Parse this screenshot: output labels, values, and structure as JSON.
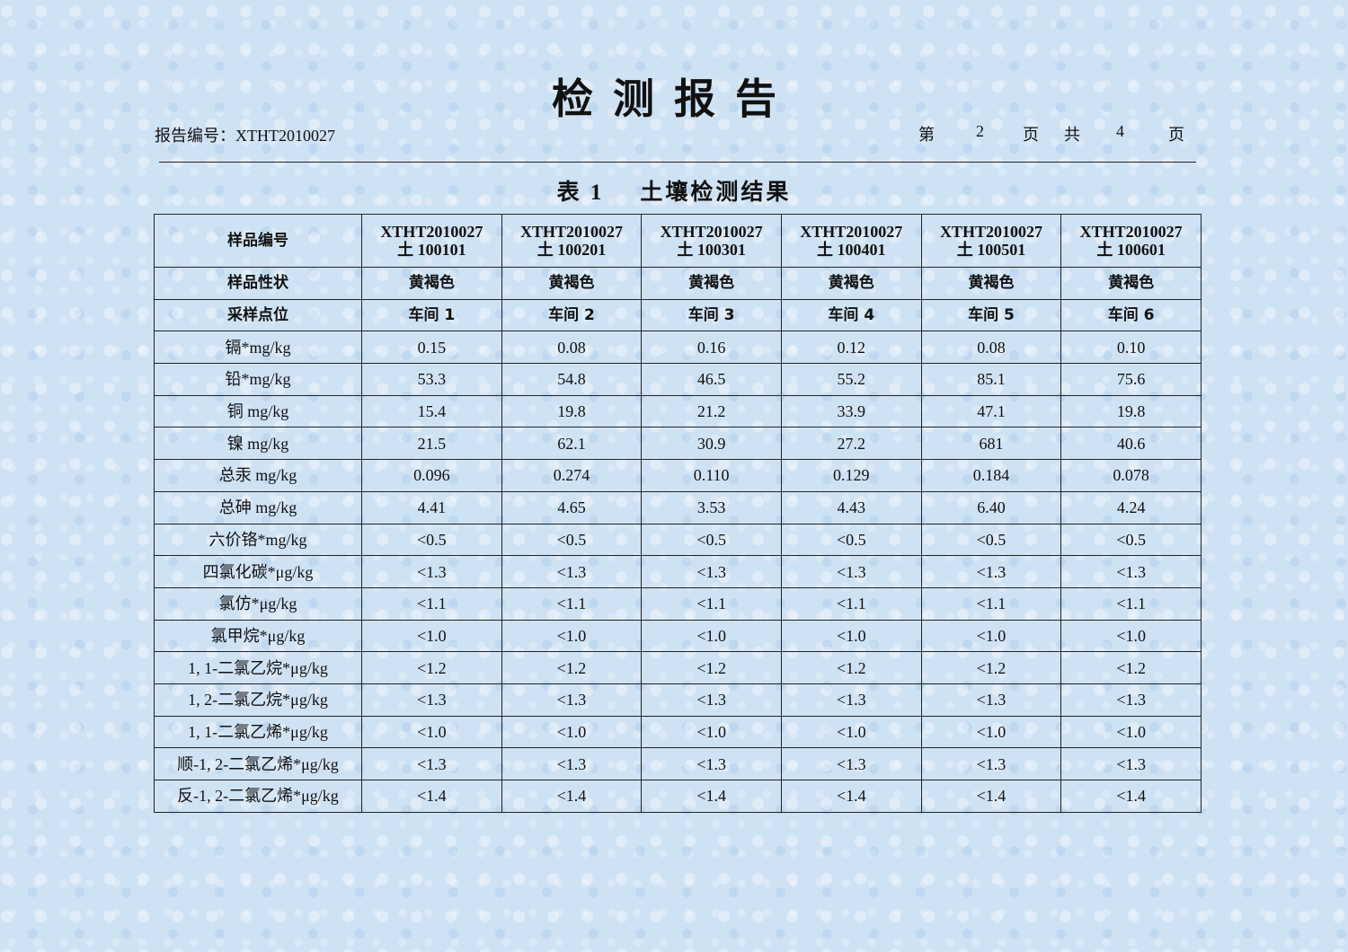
{
  "header": {
    "title": "检测报告",
    "report_no_label": "报告编号：",
    "report_no": "XTHT2010027",
    "page_info": {
      "prefix": "第",
      "page": "2",
      "page_unit": "页",
      "total_prefix": "共",
      "total": "4",
      "total_unit": "页"
    }
  },
  "table": {
    "caption_no": "表 1",
    "caption": "土壤检测结果",
    "sample_id_label": "样品编号",
    "sample_ids": [
      {
        "line1": "XTHT2010027",
        "line2": "土 100101"
      },
      {
        "line1": "XTHT2010027",
        "line2": "土 100201"
      },
      {
        "line1": "XTHT2010027",
        "line2": "土 100301"
      },
      {
        "line1": "XTHT2010027",
        "line2": "土 100401"
      },
      {
        "line1": "XTHT2010027",
        "line2": "土 100501"
      },
      {
        "line1": "XTHT2010027",
        "line2": "土 100601"
      }
    ],
    "property_label": "样品性状",
    "properties": [
      "黄褐色",
      "黄褐色",
      "黄褐色",
      "黄褐色",
      "黄褐色",
      "黄褐色"
    ],
    "location_label": "采样点位",
    "locations": [
      "车间 1",
      "车间 2",
      "车间 3",
      "车间 4",
      "车间 5",
      "车间 6"
    ],
    "rows": [
      {
        "item": "镉*mg/kg",
        "values": [
          "0.15",
          "0.08",
          "0.16",
          "0.12",
          "0.08",
          "0.10"
        ]
      },
      {
        "item": "铅*mg/kg",
        "values": [
          "53.3",
          "54.8",
          "46.5",
          "55.2",
          "85.1",
          "75.6"
        ]
      },
      {
        "item": "铜 mg/kg",
        "values": [
          "15.4",
          "19.8",
          "21.2",
          "33.9",
          "47.1",
          "19.8"
        ]
      },
      {
        "item": "镍 mg/kg",
        "values": [
          "21.5",
          "62.1",
          "30.9",
          "27.2",
          "681",
          "40.6"
        ]
      },
      {
        "item": "总汞 mg/kg",
        "values": [
          "0.096",
          "0.274",
          "0.110",
          "0.129",
          "0.184",
          "0.078"
        ]
      },
      {
        "item": "总砷 mg/kg",
        "values": [
          "4.41",
          "4.65",
          "3.53",
          "4.43",
          "6.40",
          "4.24"
        ]
      },
      {
        "item": "六价铬*mg/kg",
        "values": [
          "<0.5",
          "<0.5",
          "<0.5",
          "<0.5",
          "<0.5",
          "<0.5"
        ]
      },
      {
        "item": "四氯化碳*μg/kg",
        "values": [
          "<1.3",
          "<1.3",
          "<1.3",
          "<1.3",
          "<1.3",
          "<1.3"
        ]
      },
      {
        "item": "氯仿*μg/kg",
        "values": [
          "<1.1",
          "<1.1",
          "<1.1",
          "<1.1",
          "<1.1",
          "<1.1"
        ]
      },
      {
        "item": "氯甲烷*μg/kg",
        "values": [
          "<1.0",
          "<1.0",
          "<1.0",
          "<1.0",
          "<1.0",
          "<1.0"
        ]
      },
      {
        "item": "1, 1-二氯乙烷*μg/kg",
        "values": [
          "<1.2",
          "<1.2",
          "<1.2",
          "<1.2",
          "<1.2",
          "<1.2"
        ]
      },
      {
        "item": "1, 2-二氯乙烷*μg/kg",
        "values": [
          "<1.3",
          "<1.3",
          "<1.3",
          "<1.3",
          "<1.3",
          "<1.3"
        ]
      },
      {
        "item": "1, 1-二氯乙烯*μg/kg",
        "values": [
          "<1.0",
          "<1.0",
          "<1.0",
          "<1.0",
          "<1.0",
          "<1.0"
        ]
      },
      {
        "item": "顺-1, 2-二氯乙烯*μg/kg",
        "values": [
          "<1.3",
          "<1.3",
          "<1.3",
          "<1.3",
          "<1.3",
          "<1.3"
        ]
      },
      {
        "item": "反-1, 2-二氯乙烯*μg/kg",
        "values": [
          "<1.4",
          "<1.4",
          "<1.4",
          "<1.4",
          "<1.4",
          "<1.4"
        ]
      }
    ]
  }
}
